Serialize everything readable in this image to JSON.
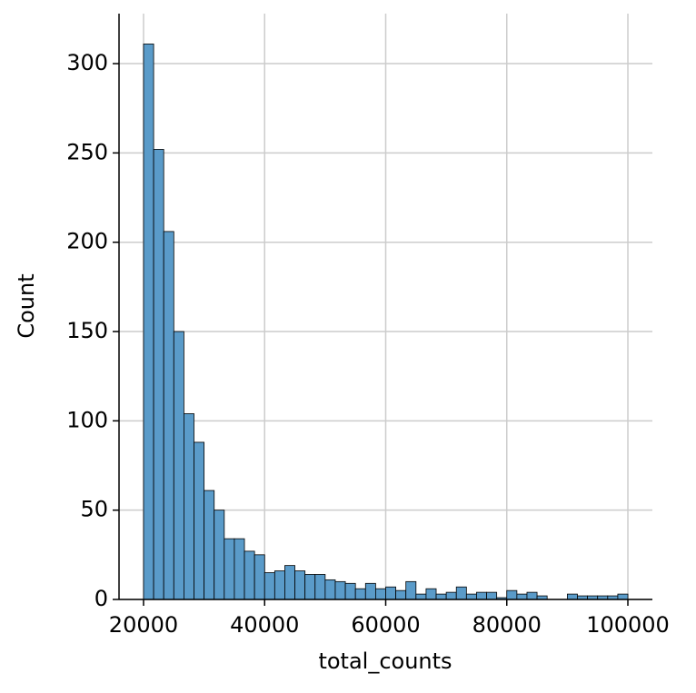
{
  "chart_data": {
    "type": "histogram",
    "x_label": "total_counts",
    "y_label": "Count",
    "bins": [
      20000,
      21666.67,
      23333.33,
      25000,
      26666.67,
      28333.33,
      30000,
      31666.67,
      33333.33,
      35000,
      36666.67,
      38333.33,
      40000,
      41666.67,
      43333.33,
      45000,
      46666.67,
      48333.33,
      50000,
      51666.67,
      53333.33,
      55000,
      56666.67,
      58333.33,
      60000,
      61666.67,
      63333.33,
      65000,
      66666.67,
      68333.33,
      70000,
      71666.67,
      73333.33,
      75000,
      76666.67,
      78333.33,
      80000,
      81666.67,
      83333.33,
      85000,
      86666.67,
      88333.33,
      90000,
      91666.67,
      93333.33,
      95000,
      96666.67,
      98333.33,
      100000
    ],
    "counts": [
      311,
      252,
      206,
      150,
      104,
      88,
      61,
      50,
      34,
      34,
      27,
      25,
      15,
      16,
      19,
      16,
      14,
      14,
      11,
      10,
      9,
      6,
      9,
      6,
      7,
      5,
      10,
      3,
      6,
      3,
      4,
      7,
      3,
      4,
      4,
      1,
      5,
      3,
      4,
      2,
      0,
      0,
      3,
      2,
      2,
      2,
      2,
      3
    ],
    "color": "#5a9bc9",
    "xlim": [
      15950,
      104050
    ],
    "ylim": [
      0,
      328
    ],
    "xticks": [
      20000,
      40000,
      60000,
      80000,
      100000
    ],
    "yticks": [
      0,
      50,
      100,
      150,
      200,
      250,
      300
    ],
    "grid": true
  }
}
